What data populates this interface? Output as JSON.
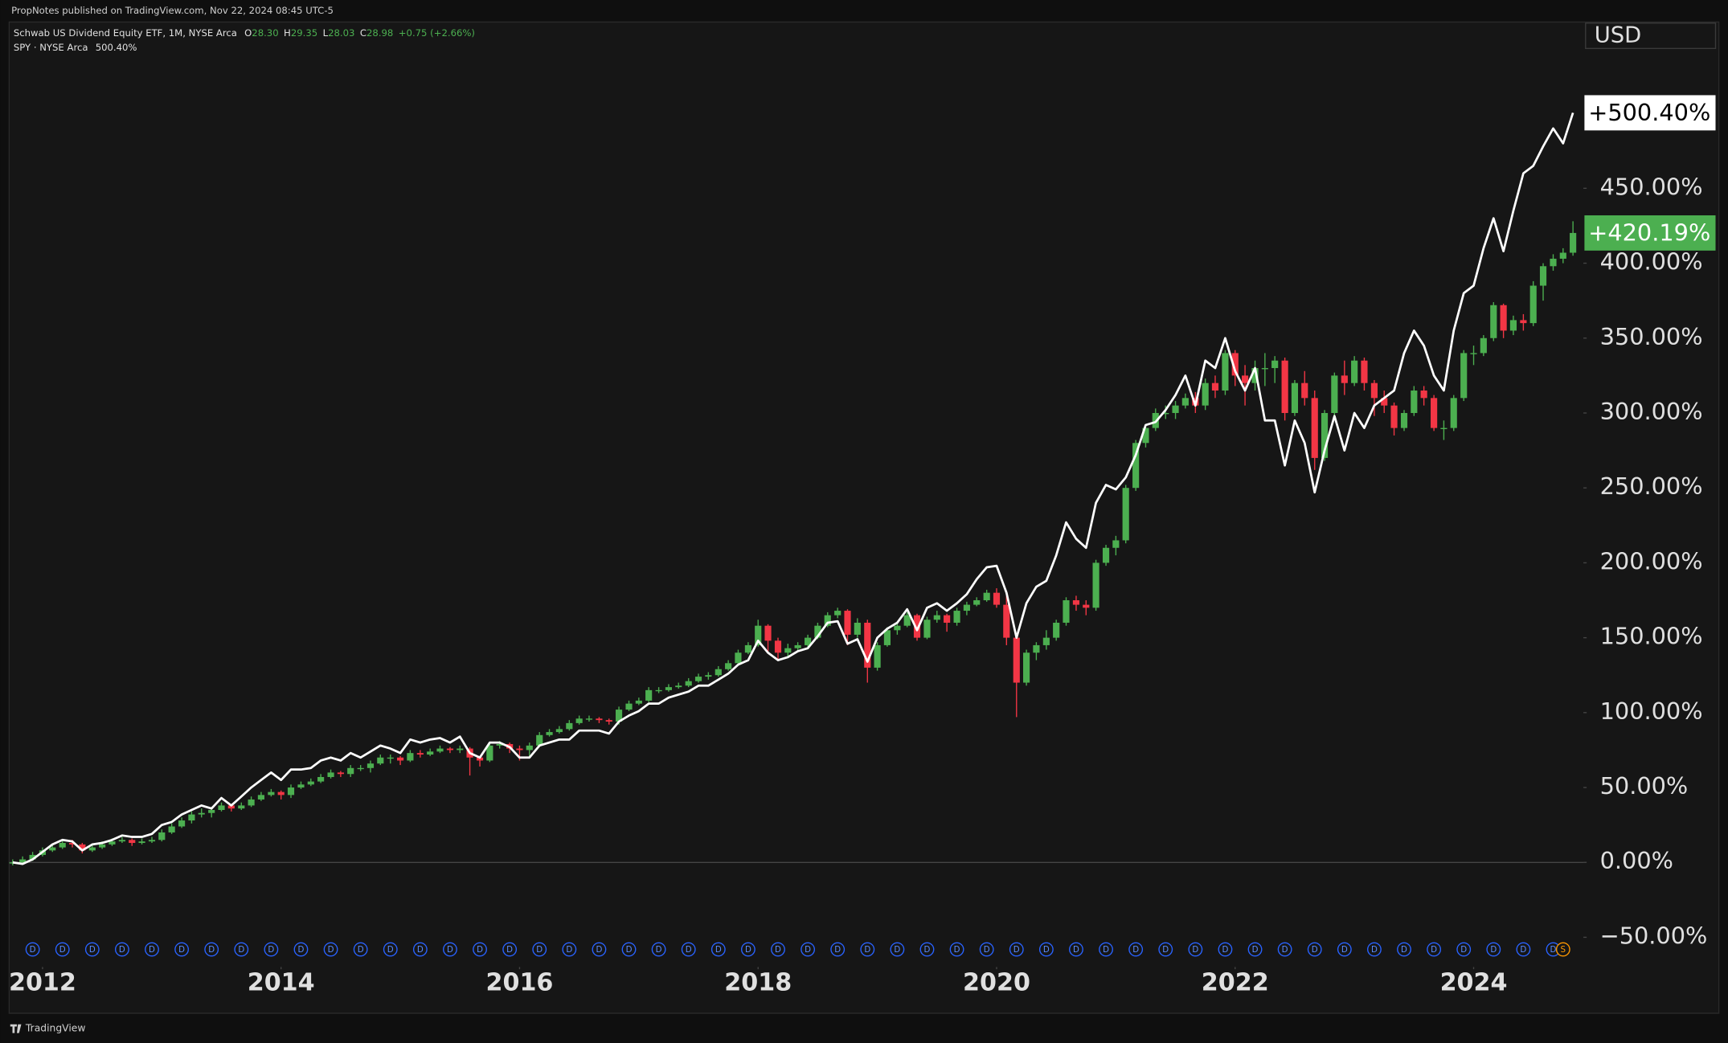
{
  "header": {
    "publisher": "PropNotes published on TradingView.com, Nov 22, 2024 08:45 UTC-5"
  },
  "footer": {
    "brand": "TradingView"
  },
  "chart_data": {
    "type": "candlestick",
    "currency": "USD",
    "x": [
      2011.75,
      2011.833,
      2011.917,
      2012,
      2012.083,
      2012.167,
      2012.25,
      2012.333,
      2012.417,
      2012.5,
      2012.583,
      2012.667,
      2012.75,
      2012.833,
      2012.917,
      2013,
      2013.083,
      2013.167,
      2013.25,
      2013.333,
      2013.417,
      2013.5,
      2013.583,
      2013.667,
      2013.75,
      2013.833,
      2013.917,
      2014,
      2014.083,
      2014.167,
      2014.25,
      2014.333,
      2014.417,
      2014.5,
      2014.583,
      2014.667,
      2014.75,
      2014.833,
      2014.917,
      2015,
      2015.083,
      2015.167,
      2015.25,
      2015.333,
      2015.417,
      2015.5,
      2015.583,
      2015.667,
      2015.75,
      2015.833,
      2015.917,
      2016,
      2016.083,
      2016.167,
      2016.25,
      2016.333,
      2016.417,
      2016.5,
      2016.583,
      2016.667,
      2016.75,
      2016.833,
      2016.917,
      2017,
      2017.083,
      2017.167,
      2017.25,
      2017.333,
      2017.417,
      2017.5,
      2017.583,
      2017.667,
      2017.75,
      2017.833,
      2017.917,
      2018,
      2018.083,
      2018.167,
      2018.25,
      2018.333,
      2018.417,
      2018.5,
      2018.583,
      2018.667,
      2018.75,
      2018.833,
      2018.917,
      2019,
      2019.083,
      2019.167,
      2019.25,
      2019.333,
      2019.417,
      2019.5,
      2019.583,
      2019.667,
      2019.75,
      2019.833,
      2019.917,
      2020,
      2020.083,
      2020.167,
      2020.25,
      2020.333,
      2020.417,
      2020.5,
      2020.583,
      2020.667,
      2020.75,
      2020.833,
      2020.917,
      2021,
      2021.083,
      2021.167,
      2021.25,
      2021.333,
      2021.417,
      2021.5,
      2021.583,
      2021.667,
      2021.75,
      2021.833,
      2021.917,
      2022,
      2022.083,
      2022.167,
      2022.25,
      2022.333,
      2022.417,
      2022.5,
      2022.583,
      2022.667,
      2022.75,
      2022.833,
      2022.917,
      2023,
      2023.083,
      2023.167,
      2023.25,
      2023.333,
      2023.417,
      2023.5,
      2023.583,
      2023.667,
      2023.75,
      2023.833,
      2023.917,
      2024,
      2024.083,
      2024.167,
      2024.25,
      2024.333,
      2024.417,
      2024.5,
      2024.583,
      2024.667,
      2024.75,
      2024.833
    ],
    "xlim": [
      2011.72,
      2024.92
    ],
    "xticks": [
      2012,
      2014,
      2016,
      2018,
      2020,
      2022,
      2024
    ],
    "ylim": [
      -71.3,
      561
    ],
    "yticks": [
      {
        "value": -50,
        "label": "−50.00%"
      },
      {
        "value": 0,
        "label": "0.00%"
      },
      {
        "value": 50,
        "label": "50.00%"
      },
      {
        "value": 100,
        "label": "100.00%"
      },
      {
        "value": 150,
        "label": "150.00%"
      },
      {
        "value": 200,
        "label": "200.00%"
      },
      {
        "value": 250,
        "label": "250.00%"
      },
      {
        "value": 300,
        "label": "300.00%"
      },
      {
        "value": 350,
        "label": "350.00%"
      },
      {
        "value": 400,
        "label": "400.00%"
      },
      {
        "value": 450,
        "label": "450.00%"
      }
    ],
    "grid": false,
    "series": [
      {
        "name": "Schwab US Dividend Equity ETF, 1M, NYSE Arca",
        "type": "candlestick",
        "up_color": "#4caf50",
        "down_color": "#f23645",
        "close": [
          0,
          2,
          5,
          8,
          10,
          13,
          12,
          8,
          10,
          12,
          14,
          15,
          13,
          14,
          15,
          20,
          24,
          28,
          32,
          33,
          35,
          38,
          36,
          38,
          42,
          45,
          47,
          45,
          50,
          52,
          54,
          57,
          60,
          59,
          63,
          63,
          66,
          70,
          70,
          68,
          73,
          72,
          74,
          76,
          75,
          76,
          70,
          68,
          78,
          79,
          76,
          75,
          78,
          85,
          87,
          89,
          93,
          96,
          96,
          95,
          94,
          102,
          106,
          108,
          115,
          115,
          117,
          118,
          121,
          124,
          125,
          129,
          133,
          140,
          145,
          158,
          148,
          140,
          143,
          145,
          150,
          158,
          165,
          168,
          152,
          160,
          130,
          145,
          155,
          158,
          165,
          150,
          162,
          165,
          160,
          168,
          172,
          175,
          180,
          172,
          150,
          120,
          140,
          145,
          150,
          160,
          175,
          172,
          170,
          200,
          210,
          215,
          250,
          280,
          290,
          300,
          300,
          305,
          310,
          305,
          320,
          315,
          340,
          325,
          320,
          330,
          330,
          335,
          300,
          320,
          310,
          270,
          300,
          325,
          320,
          335,
          320,
          310,
          305,
          290,
          300,
          315,
          310,
          290,
          290,
          310,
          340,
          340,
          350,
          372,
          355,
          362,
          360,
          385,
          398,
          403,
          407,
          420.19
        ],
        "high": [
          2,
          4,
          7,
          10,
          12,
          15,
          15,
          13,
          12,
          14,
          16,
          17,
          16,
          16,
          17,
          22,
          26,
          30,
          34,
          36,
          37,
          40,
          39,
          40,
          44,
          47,
          49,
          48,
          52,
          54,
          56,
          59,
          62,
          61,
          65,
          65,
          68,
          72,
          72,
          71,
          75,
          75,
          76,
          78,
          77,
          78,
          77,
          71,
          80,
          81,
          80,
          78,
          80,
          87,
          89,
          91,
          95,
          98,
          98,
          97,
          96,
          104,
          108,
          110,
          117,
          117,
          119,
          120,
          123,
          126,
          127,
          131,
          135,
          142,
          147,
          162,
          159,
          150,
          146,
          147,
          152,
          160,
          167,
          170,
          169,
          163,
          162,
          147,
          157,
          160,
          167,
          166,
          164,
          168,
          166,
          170,
          174,
          177,
          182,
          183,
          178,
          152,
          142,
          147,
          155,
          162,
          177,
          178,
          175,
          202,
          212,
          218,
          252,
          282,
          292,
          303,
          305,
          308,
          313,
          314,
          323,
          325,
          342,
          342,
          332,
          335,
          340,
          338,
          337,
          322,
          328,
          315,
          302,
          327,
          335,
          338,
          337,
          322,
          315,
          307,
          302,
          318,
          318,
          312,
          295,
          312,
          342,
          345,
          352,
          374,
          373,
          365,
          366,
          388,
          400,
          406,
          410,
          428
        ],
        "low": [
          -2,
          -1,
          1,
          4,
          7,
          9,
          10,
          6,
          7,
          9,
          11,
          13,
          11,
          12,
          13,
          14,
          19,
          23,
          26,
          30,
          30,
          34,
          34,
          35,
          37,
          41,
          44,
          42,
          43,
          49,
          51,
          53,
          56,
          57,
          57,
          61,
          60,
          65,
          66,
          65,
          67,
          70,
          71,
          73,
          73,
          73,
          58,
          64,
          67,
          76,
          73,
          68,
          70,
          77,
          84,
          86,
          88,
          92,
          94,
          93,
          92,
          92,
          101,
          105,
          107,
          113,
          114,
          116,
          117,
          120,
          122,
          124,
          128,
          132,
          139,
          144,
          140,
          135,
          137,
          141,
          144,
          149,
          157,
          163,
          145,
          150,
          120,
          128,
          144,
          152,
          157,
          148,
          149,
          160,
          154,
          158,
          165,
          171,
          174,
          170,
          145,
          97,
          118,
          135,
          142,
          148,
          158,
          168,
          165,
          168,
          198,
          205,
          213,
          248,
          277,
          288,
          296,
          296,
          303,
          300,
          302,
          310,
          312,
          318,
          305,
          315,
          318,
          320,
          295,
          298,
          305,
          262,
          268,
          298,
          312,
          318,
          315,
          298,
          300,
          285,
          288,
          298,
          305,
          288,
          282,
          288,
          308,
          332,
          338,
          348,
          350,
          352,
          355,
          358,
          375,
          395,
          400,
          405
        ],
        "last_value_label": "+420.19%",
        "legend": {
          "open_label": "O",
          "open": "28.30",
          "high_label": "H",
          "high": "29.35",
          "low_label": "L",
          "low": "28.03",
          "close_label": "C",
          "close": "28.98",
          "change": "+0.75 (+2.66%)"
        }
      },
      {
        "name": "SPY · NYSE Arca",
        "type": "line",
        "color": "#ffffff",
        "values": [
          0,
          -1,
          2,
          7,
          12,
          15,
          14,
          8,
          12,
          13,
          15,
          18,
          17,
          17,
          19,
          25,
          27,
          32,
          35,
          38,
          36,
          43,
          38,
          44,
          50,
          55,
          60,
          55,
          62,
          62,
          63,
          68,
          70,
          68,
          73,
          70,
          74,
          78,
          76,
          73,
          82,
          80,
          82,
          83,
          80,
          84,
          73,
          70,
          80,
          80,
          77,
          70,
          70,
          78,
          80,
          82,
          82,
          88,
          88,
          88,
          86,
          94,
          98,
          101,
          106,
          106,
          110,
          112,
          114,
          118,
          118,
          122,
          126,
          132,
          135,
          148,
          140,
          135,
          137,
          141,
          143,
          151,
          160,
          161,
          146,
          149,
          134,
          150,
          156,
          160,
          169,
          155,
          170,
          173,
          168,
          173,
          179,
          189,
          197,
          198,
          180,
          150,
          173,
          184,
          188,
          205,
          227,
          216,
          210,
          240,
          252,
          249,
          257,
          272,
          292,
          294,
          302,
          312,
          325,
          305,
          335,
          330,
          350,
          328,
          315,
          330,
          295,
          295,
          265,
          295,
          280,
          247,
          275,
          298,
          275,
          300,
          290,
          305,
          310,
          315,
          340,
          355,
          345,
          325,
          315,
          355,
          380,
          385,
          410,
          430,
          408,
          435,
          460,
          465,
          478,
          490,
          480,
          500.4
        ],
        "legend_value": "500.40%",
        "last_value_label": "+500.40%"
      }
    ],
    "events": {
      "dividend_label": "D",
      "dividend_x": [
        2011.917,
        2012.167,
        2012.417,
        2012.667,
        2012.917,
        2013.167,
        2013.417,
        2013.667,
        2013.917,
        2014.167,
        2014.417,
        2014.667,
        2014.917,
        2015.167,
        2015.417,
        2015.667,
        2015.917,
        2016.167,
        2016.417,
        2016.667,
        2016.917,
        2017.167,
        2017.417,
        2017.667,
        2017.917,
        2018.167,
        2018.417,
        2018.667,
        2018.917,
        2019.167,
        2019.417,
        2019.667,
        2019.917,
        2020.167,
        2020.417,
        2020.667,
        2020.917,
        2021.167,
        2021.417,
        2021.667,
        2021.917,
        2022.167,
        2022.417,
        2022.667,
        2022.917,
        2023.167,
        2023.417,
        2023.667,
        2023.917,
        2024.167,
        2024.417,
        2024.667
      ],
      "split_label": "S",
      "split_x": 2024.75
    }
  }
}
